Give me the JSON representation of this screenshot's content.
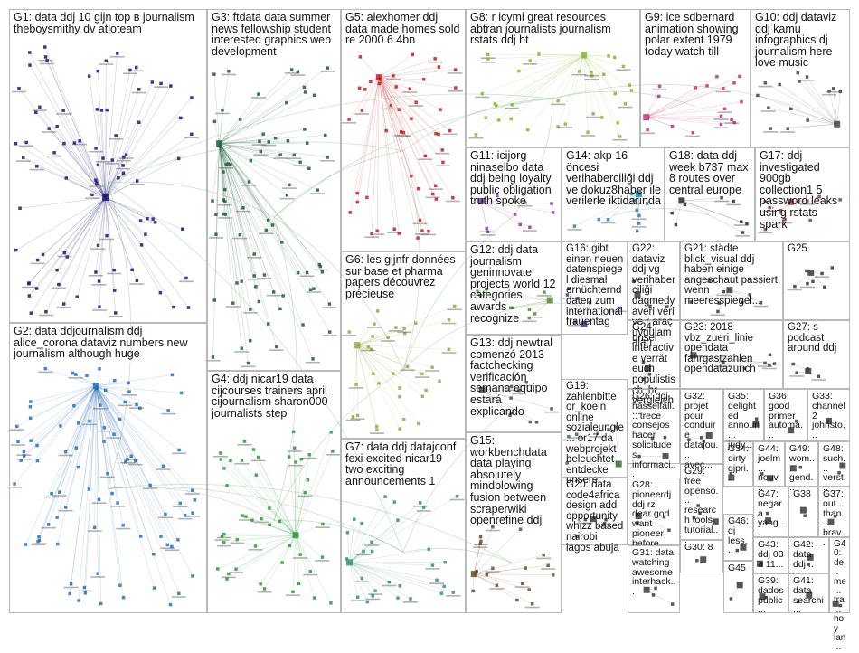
{
  "graph": {
    "groups": [
      {
        "id": "G1",
        "label": "G1: data ddj 10 gijn top в journalism theboysmithy dv atloteam",
        "color": "#1a1a6e"
      },
      {
        "id": "G2",
        "label": "G2: data ddjournalism ddj alice_corona dataviz numbers new journalism although huge",
        "color": "#2a6fb8"
      },
      {
        "id": "G3",
        "label": "G3: ftdata data summer news fellowship student interested graphics web development",
        "color": "#1e5e3a"
      },
      {
        "id": "G4",
        "label": "G4: ddj nicar19 data cijcourses trainers april cijournalism sharon000 journalists step",
        "color": "#2f9a3a"
      },
      {
        "id": "G5",
        "label": "G5: alexhomer ddj data made homes sold re 2000 6 4bn",
        "color": "#c0201e"
      },
      {
        "id": "G6",
        "label": "G6: les gijnfr données sur base et pharma papers découvrez précieuse",
        "color": "#9aa84a"
      },
      {
        "id": "G7",
        "label": "G7: data ddj datajconf fexi excited nicar19 two exciting announcements 1",
        "color": "#3b8f7a"
      },
      {
        "id": "G8",
        "label": "G8: r icymi great resources abtran journalists journalism rstats ddj ht",
        "color": "#8ab43a"
      },
      {
        "id": "G9",
        "label": "G9: ice sdbernard animation showing polar extent 1979 today watch till",
        "color": "#c0307a"
      },
      {
        "id": "G10",
        "label": "G10: ddj dataviz ddj kamu infographics dj journalism here love music",
        "color": "#444444"
      },
      {
        "id": "G11",
        "label": "G11: icijorg ninaselbo data ddj being loyalty public obligation truth spoke",
        "color": "#7a3fa0"
      },
      {
        "id": "G12",
        "label": "G12: ddj data journalism geninnovate projects world 12 categories awards recognize",
        "color": "#5a8a3a"
      },
      {
        "id": "G13",
        "label": "G13: ddj newtral comenzó 2013 factchecking verificación semana equipo estará explicando",
        "color": "#4a4a4a"
      },
      {
        "id": "G14",
        "label": "G14: akp 16 öncesi verihaberciliği ddj ve dokuz8haber ile verilerle iktidarında",
        "color": "#2a7fae"
      },
      {
        "id": "G15",
        "label": "G15: workbenchdata data playing absolutely mindblowing fusion between scraperwiki openrefine ddj",
        "color": "#6a4a2a"
      },
      {
        "id": "G16",
        "label": "G16: gibt einen neuen datenspiegel diesmal ernüchternd daten zum international frauentag",
        "color": "#3a3a8a"
      },
      {
        "id": "G17",
        "label": "G17: ddj investigated 900gb collection1 5 password leaks using rstats spark",
        "color": "#8a3a3a"
      },
      {
        "id": "G18",
        "label": "G18: data ddj week b737 max 8 routes over central europe",
        "color": "#2a2a2a"
      },
      {
        "id": "G19",
        "label": "G19: zahlenbitte or_koeln online sozialeungle... or17 da webprojekt beleuchtet entdecke unserer",
        "color": "#3a6a3a"
      },
      {
        "id": "G20",
        "label": "G20: data code4africa design add opportunity whizz based nairobi lagos abuja",
        "color": "#3a3a3a"
      },
      {
        "id": "G21",
        "label": "G21: städte blick_visual ddj haben einige angeschaut passiert wenn meeresspiegel...",
        "color": "#3a3a3a"
      },
      {
        "id": "G22",
        "label": "G22: dataviz ddj vg verihaberciliği dagmedyaveri veri ve r araç uygulamaları",
        "color": "#3a3a3a"
      },
      {
        "id": "G23",
        "label": "G23: 2018 vbz_zueri_linie opendata fahrgastzahlen opendatazurich",
        "color": "#3a3a3a"
      },
      {
        "id": "G24",
        "label": "G24: unser interactive verrät euch populistisch ihr vergleich...",
        "color": "#3a3a3a"
      },
      {
        "id": "G25",
        "label": "G25",
        "color": "#3a3a3a"
      },
      {
        "id": "G26",
        "label": "G26: ddj hasselfall... trece consejos hacer solicitudes informaci...",
        "color": "#3a3a3a"
      },
      {
        "id": "G27",
        "label": "G27: s podcast around ddj",
        "color": "#3a3a3a"
      },
      {
        "id": "G28",
        "label": "G28: pioneerdj ddj rz dear god want pioneer before...",
        "color": "#3a3a3a"
      },
      {
        "id": "G29",
        "label": "G29: free openso... research tools tutorial...",
        "color": "#3a3a3a"
      },
      {
        "id": "G30",
        "label": "G30: 8",
        "color": "#3a3a3a"
      },
      {
        "id": "G31",
        "label": "G31: data watching awesome interhack...",
        "color": "#3a3a3a"
      },
      {
        "id": "G32",
        "label": "G32: projet pour conduire datajou... avec...",
        "color": "#3a3a3a"
      },
      {
        "id": "G33",
        "label": "G33: channel 2 johnsto...",
        "color": "#3a3a3a"
      },
      {
        "id": "G34",
        "label": "G34: dirty djpri...",
        "color": "#3a3a3a"
      },
      {
        "id": "G35",
        "label": "G35: delighted announ... judy...",
        "color": "#3a3a3a"
      },
      {
        "id": "G36",
        "label": "G36: good primer automa...",
        "color": "#3a3a3a"
      },
      {
        "id": "G37",
        "label": "G37: out... than... brav...",
        "color": "#3a3a3a"
      },
      {
        "id": "G38",
        "label": "G38",
        "color": "#3a3a3a"
      },
      {
        "id": "G39",
        "label": "G39: dados públic...",
        "color": "#3a3a3a"
      },
      {
        "id": "G40",
        "label": "G40: de... me... tra... hoy lan...",
        "color": "#3a3a3a"
      },
      {
        "id": "G41",
        "label": "G41: data searchi...",
        "color": "#3a3a3a"
      },
      {
        "id": "G42",
        "label": "G42: data ddj...",
        "color": "#3a3a3a"
      },
      {
        "id": "G43",
        "label": "G43: ddj 03 a 11...",
        "color": "#3a3a3a"
      },
      {
        "id": "G44",
        "label": "G44: joelm... nouv...",
        "color": "#3a3a3a"
      },
      {
        "id": "G45",
        "label": "G45",
        "color": "#3a3a3a"
      },
      {
        "id": "G46",
        "label": "G46: dj less...",
        "color": "#3a3a3a"
      },
      {
        "id": "G47",
        "label": "G47: negara yang...",
        "color": "#3a3a3a"
      },
      {
        "id": "G48",
        "label": "G48: such... verst...",
        "color": "#3a3a3a"
      },
      {
        "id": "G49",
        "label": "G49: wom... gend...",
        "color": "#3a3a3a"
      }
    ]
  }
}
